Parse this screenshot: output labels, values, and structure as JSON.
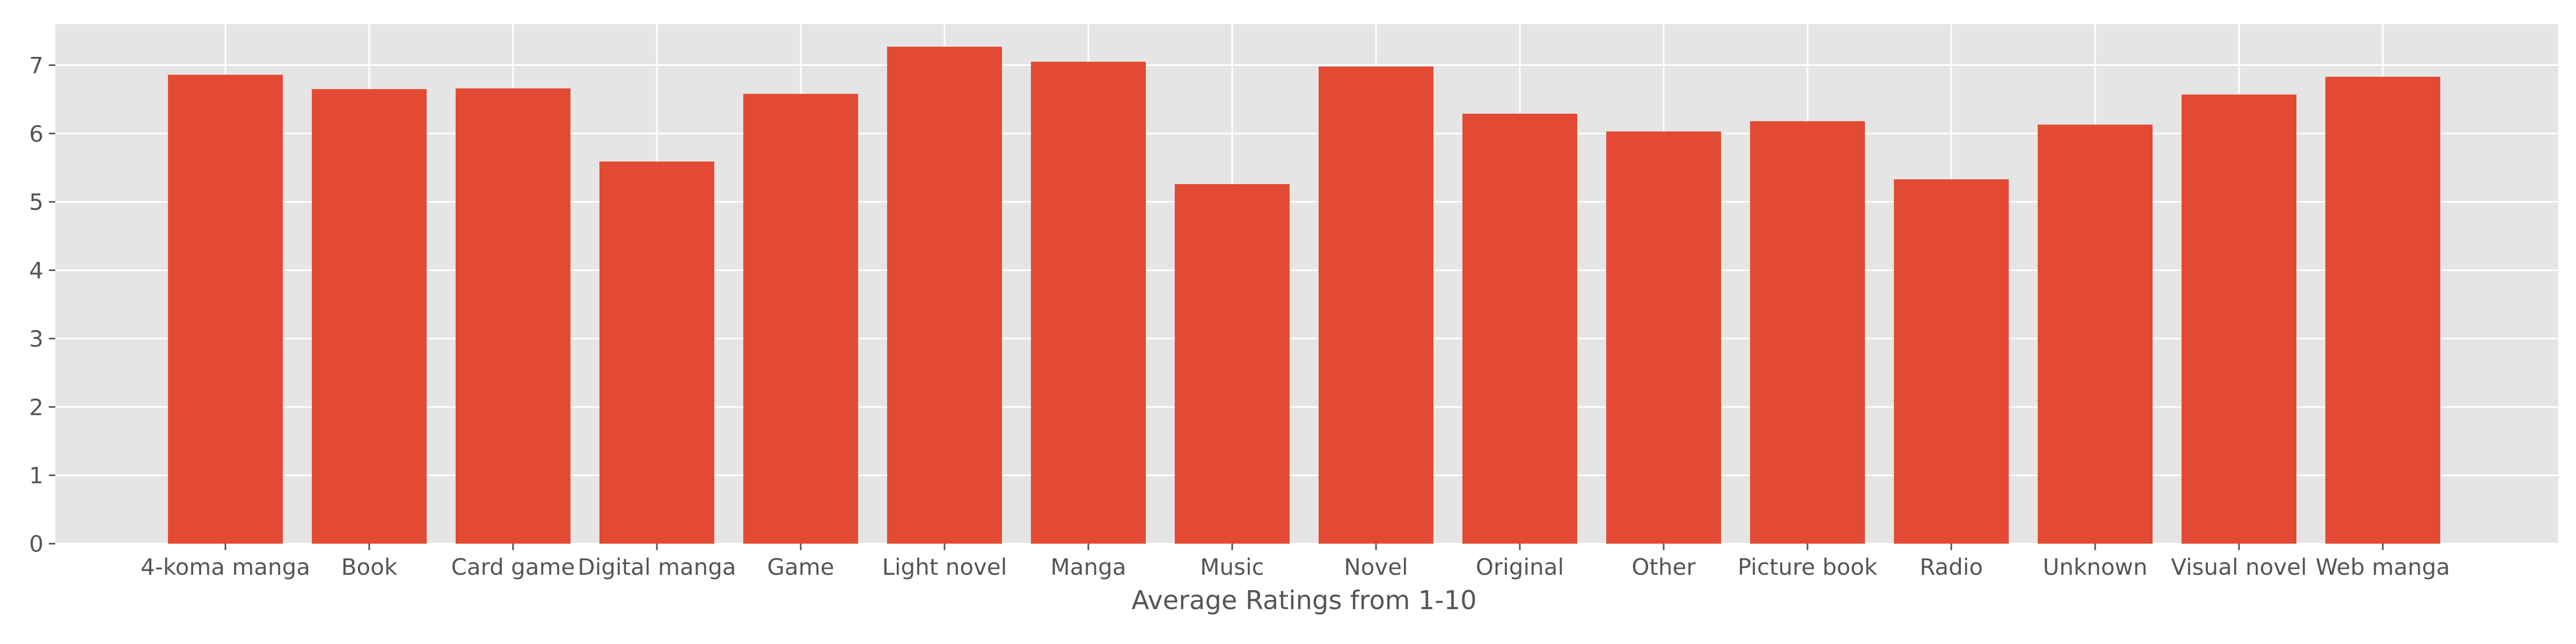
{
  "chart_data": {
    "type": "bar",
    "categories": [
      "4-koma manga",
      "Book",
      "Card game",
      "Digital manga",
      "Game",
      "Light novel",
      "Manga",
      "Music",
      "Novel",
      "Original",
      "Other",
      "Picture book",
      "Radio",
      "Unknown",
      "Visual novel",
      "Web manga"
    ],
    "values": [
      6.86,
      6.65,
      6.66,
      5.59,
      6.58,
      7.27,
      7.05,
      5.26,
      6.98,
      6.29,
      6.03,
      6.18,
      5.33,
      6.13,
      6.57,
      6.83
    ],
    "title": "",
    "xlabel": "Average Ratings from 1-10",
    "ylabel": "",
    "ylim": [
      0,
      7.6
    ],
    "yticks": [
      0,
      1,
      2,
      3,
      4,
      5,
      6,
      7
    ],
    "grid": true,
    "colors": {
      "bar": "#E24A33",
      "plot_bg": "#E5E5E5",
      "grid": "#FFFFFF",
      "tick_text": "#555555",
      "label_text": "#555555"
    }
  }
}
